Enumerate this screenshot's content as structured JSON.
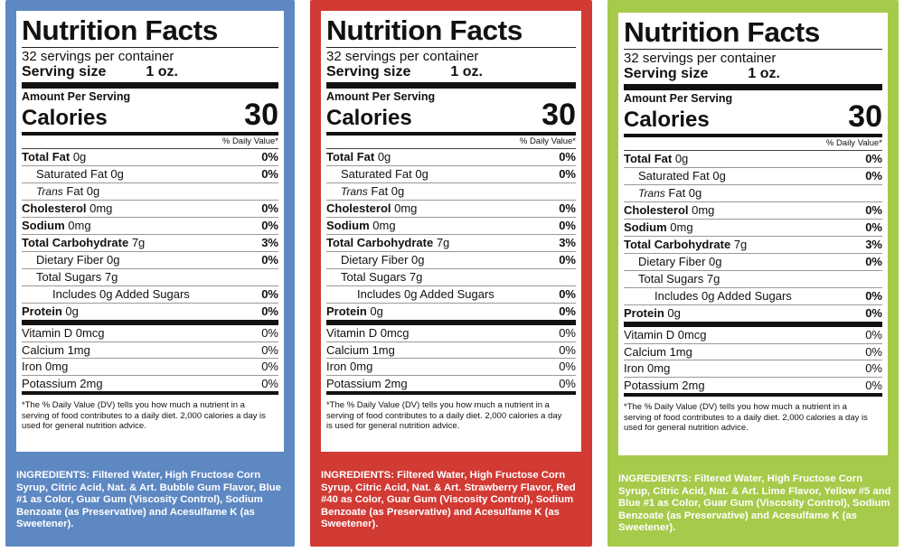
{
  "labels": [
    {
      "title": "Nutrition Facts",
      "servings": "32 servings per container",
      "serving_size_label": "Serving size",
      "serving_size_value": "1 oz.",
      "amount_per_serving": "Amount Per Serving",
      "calories_label": "Calories",
      "calories_value": "30",
      "dv_header": "% Daily Value*",
      "nutrients": [
        {
          "bold": "Total Fat",
          "rest": " 0g",
          "dv": "0%"
        },
        {
          "bold": "",
          "rest": "Saturated Fat 0g",
          "dv": "0%"
        },
        {
          "italic": "Trans",
          "rest": " Fat 0g",
          "dv": ""
        },
        {
          "bold": "Cholesterol",
          "rest": " 0mg",
          "dv": "0%"
        },
        {
          "bold": "Sodium",
          "rest": " 0mg",
          "dv": "0%"
        },
        {
          "bold": "Total Carbohydrate",
          "rest": " 7g",
          "dv": "3%"
        },
        {
          "bold": "",
          "rest": "Dietary Fiber 0g",
          "dv": "0%"
        },
        {
          "bold": "",
          "rest": "Total Sugars 7g",
          "dv": ""
        },
        {
          "bold": "",
          "rest": "Includes 0g Added Sugars",
          "dv": "0%"
        },
        {
          "bold": "Protein",
          "rest": " 0g",
          "dv": "0%"
        }
      ],
      "vitamins": [
        {
          "name": "Vitamin D 0mcg",
          "dv": "0%"
        },
        {
          "name": "Calcium 1mg",
          "dv": "0%"
        },
        {
          "name": "Iron 0mg",
          "dv": "0%"
        },
        {
          "name": "Potassium 2mg",
          "dv": "0%"
        }
      ],
      "footnote": "*The % Daily Value (DV) tells you how much a nutrient in a serving of food contributes to a daily diet. 2,000 calories a day is used for general nutrition advice.",
      "ingredients": "INGREDIENTS: Filtered Water, High Fructose Corn Syrup, Citric Acid, Nat. & Art. Bubble Gum Flavor, Blue #1 as Color, Guar Gum (Viscosity Control), Sodium Benzoate (as Preservative) and Acesulfame K (as Sweetener).",
      "panel_color": "#5e88c2"
    },
    {
      "title": "Nutrition Facts",
      "servings": "32 servings per container",
      "serving_size_label": "Serving size",
      "serving_size_value": "1 oz.",
      "amount_per_serving": "Amount Per Serving",
      "calories_label": "Calories",
      "calories_value": "30",
      "dv_header": "% Daily Value*",
      "nutrients": [
        {
          "bold": "Total Fat",
          "rest": " 0g",
          "dv": "0%"
        },
        {
          "bold": "",
          "rest": "Saturated Fat 0g",
          "dv": "0%"
        },
        {
          "italic": "Trans",
          "rest": " Fat 0g",
          "dv": ""
        },
        {
          "bold": "Cholesterol",
          "rest": " 0mg",
          "dv": "0%"
        },
        {
          "bold": "Sodium",
          "rest": " 0mg",
          "dv": "0%"
        },
        {
          "bold": "Total Carbohydrate",
          "rest": " 7g",
          "dv": "3%"
        },
        {
          "bold": "",
          "rest": "Dietary Fiber 0g",
          "dv": "0%"
        },
        {
          "bold": "",
          "rest": "Total Sugars 7g",
          "dv": ""
        },
        {
          "bold": "",
          "rest": "Includes 0g Added Sugars",
          "dv": "0%"
        },
        {
          "bold": "Protein",
          "rest": " 0g",
          "dv": "0%"
        }
      ],
      "vitamins": [
        {
          "name": "Vitamin D 0mcg",
          "dv": "0%"
        },
        {
          "name": "Calcium 1mg",
          "dv": "0%"
        },
        {
          "name": "Iron 0mg",
          "dv": "0%"
        },
        {
          "name": "Potassium 2mg",
          "dv": "0%"
        }
      ],
      "footnote": "*The % Daily Value (DV) tells you how much a nutrient in a serving of food contributes to a daily diet. 2,000 calories a day is used for general nutrition advice.",
      "ingredients": "INGREDIENTS: Filtered Water, High Fructose Corn Syrup, Citric Acid, Nat. & Art. Strawberry Flavor, Red #40 as Color, Guar Gum (Viscosity Control), Sodium Benzoate (as Preservative) and Acesulfame K (as Sweetener).",
      "panel_color": "#d23a34"
    },
    {
      "title": "Nutrition Facts",
      "servings": "32 servings per container",
      "serving_size_label": "Serving size",
      "serving_size_value": "1 oz.",
      "amount_per_serving": "Amount Per Serving",
      "calories_label": "Calories",
      "calories_value": "30",
      "dv_header": "% Daily Value*",
      "nutrients": [
        {
          "bold": "Total Fat",
          "rest": " 0g",
          "dv": "0%"
        },
        {
          "bold": "",
          "rest": "Saturated Fat 0g",
          "dv": "0%"
        },
        {
          "italic": "Trans",
          "rest": " Fat 0g",
          "dv": ""
        },
        {
          "bold": "Cholesterol",
          "rest": " 0mg",
          "dv": "0%"
        },
        {
          "bold": "Sodium",
          "rest": " 0mg",
          "dv": "0%"
        },
        {
          "bold": "Total Carbohydrate",
          "rest": " 7g",
          "dv": "3%"
        },
        {
          "bold": "",
          "rest": "Dietary Fiber 0g",
          "dv": "0%"
        },
        {
          "bold": "",
          "rest": "Total Sugars 7g",
          "dv": ""
        },
        {
          "bold": "",
          "rest": "Includes 0g Added Sugars",
          "dv": "0%"
        },
        {
          "bold": "Protein",
          "rest": " 0g",
          "dv": "0%"
        }
      ],
      "vitamins": [
        {
          "name": "Vitamin D 0mcg",
          "dv": "0%"
        },
        {
          "name": "Calcium 1mg",
          "dv": "0%"
        },
        {
          "name": "Iron 0mg",
          "dv": "0%"
        },
        {
          "name": "Potassium 2mg",
          "dv": "0%"
        }
      ],
      "footnote": "*The % Daily Value (DV) tells you how much a nutrient in a serving of food contributes to a daily diet. 2,000 calories a day is used for general nutrition advice.",
      "ingredients": "INGREDIENTS: Filtered Water, High Fructose Corn Syrup, Citric Acid, Nat. & Art. Lime Flavor, Yellow #5 and Blue #1 as Color, Guar Gum (Viscosity Control), Sodium Benzoate (as Preservative) and Acesulfame K (as Sweetener).",
      "panel_color": "#a6ca4a"
    }
  ]
}
